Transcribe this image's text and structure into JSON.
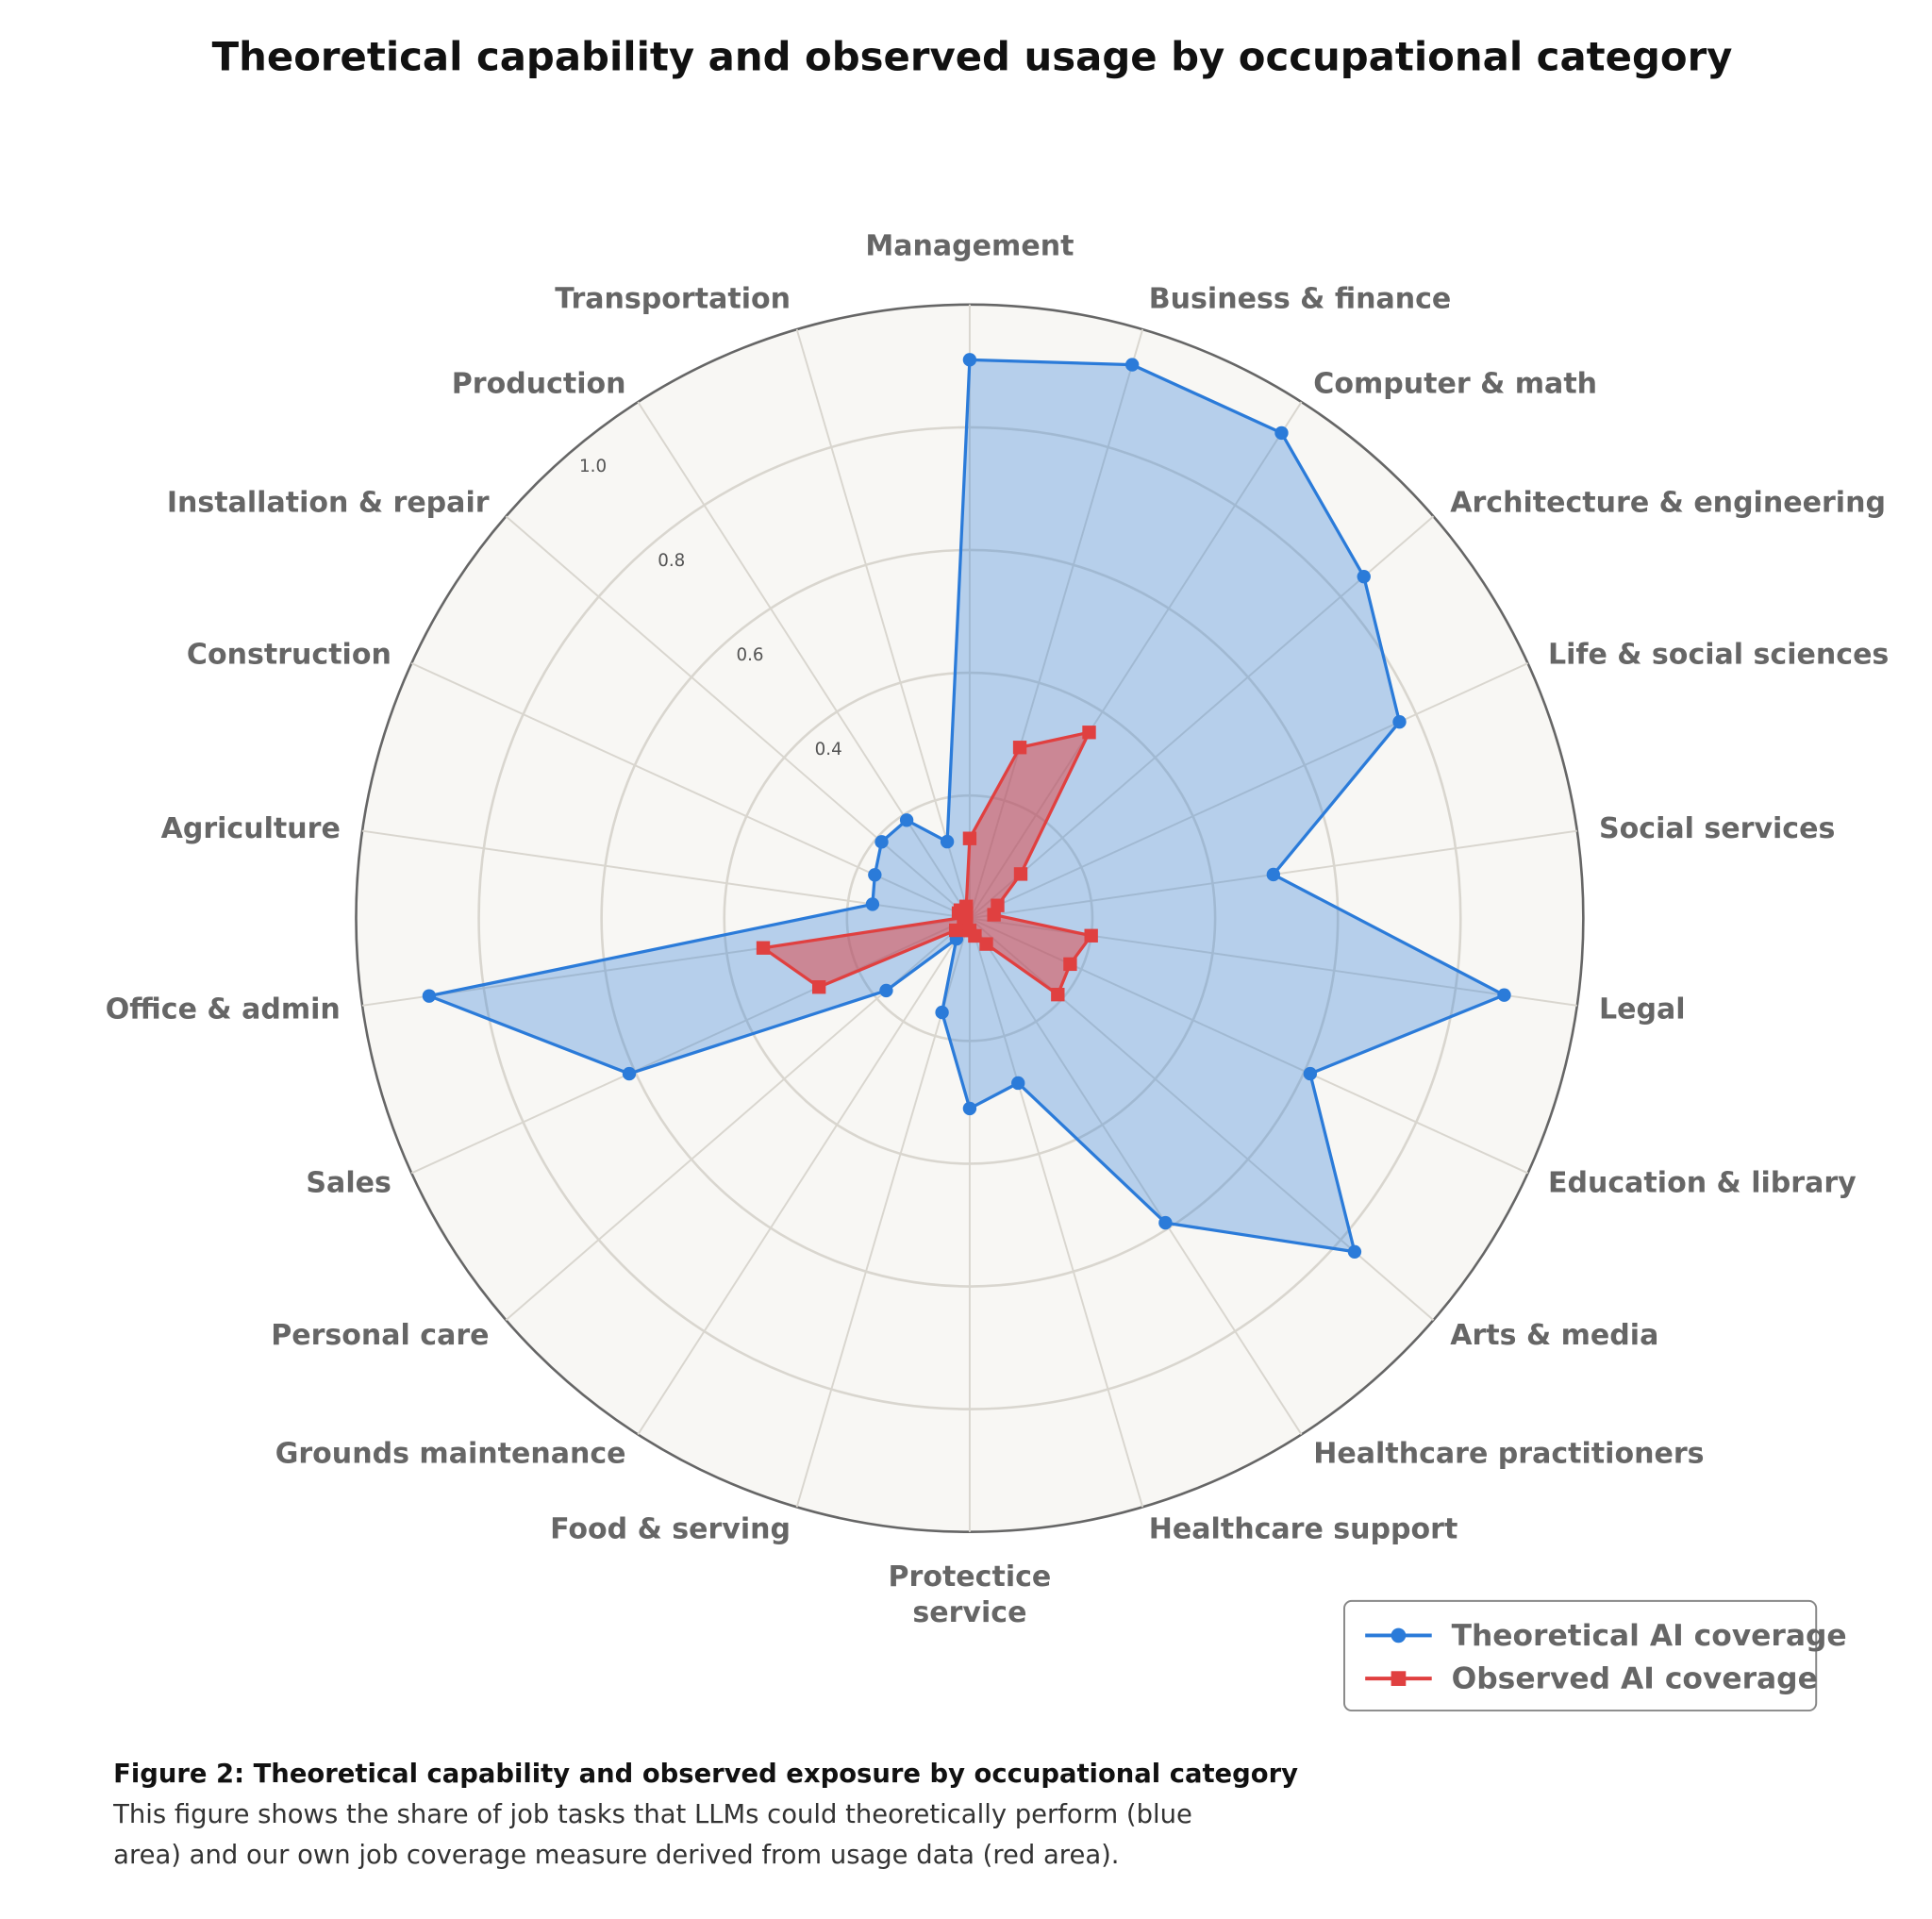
{
  "title": "Theoretical capability and observed usage by occupational category",
  "chart_data": {
    "type": "radar",
    "title": "Theoretical capability and observed usage by occupational category",
    "categories": [
      "Management",
      "Business & finance",
      "Computer & math",
      "Architecture & engineering",
      "Life & social sciences",
      "Social services",
      "Legal",
      "Education & library",
      "Arts & media",
      "Healthcare practitioners",
      "Healthcare support",
      "Protectice service",
      "Food & serving",
      "Grounds maintenance",
      "Personal care",
      "Sales",
      "Office & admin",
      "Agriculture",
      "Construction",
      "Installation & repair",
      "Production",
      "Transportation"
    ],
    "rlim": [
      0,
      1.0
    ],
    "r_ticks": [
      "0.4",
      "0.6",
      "0.8",
      "1.0"
    ],
    "r_tick_values": [
      0.4,
      0.6,
      0.8,
      1.0
    ],
    "grid": true,
    "legend_position": "bottom-right",
    "series": [
      {
        "name": "Theoretical AI coverage",
        "color": "#2b7bd9",
        "marker": "circle",
        "values": [
          0.91,
          0.94,
          0.94,
          0.85,
          0.77,
          0.5,
          0.88,
          0.61,
          0.83,
          0.59,
          0.28,
          0.31,
          0.16,
          0.04,
          0.18,
          0.61,
          0.89,
          0.16,
          0.17,
          0.19,
          0.19,
          0.13
        ]
      },
      {
        "name": "Observed AI coverage",
        "color": "#e04040",
        "marker": "square",
        "values": [
          0.13,
          0.29,
          0.36,
          0.11,
          0.05,
          0.04,
          0.2,
          0.18,
          0.19,
          0.05,
          0.03,
          0.02,
          0.02,
          0.01,
          0.03,
          0.27,
          0.34,
          0.01,
          0.02,
          0.02,
          0.01,
          0.02
        ]
      }
    ]
  },
  "caption": {
    "heading": "Figure 2: Theoretical capability and observed exposure by occupational category",
    "line1": "This figure shows the share of job tasks that LLMs could theoretically perform (blue",
    "line2": "area) and our own job coverage measure derived from usage data (red area)."
  }
}
